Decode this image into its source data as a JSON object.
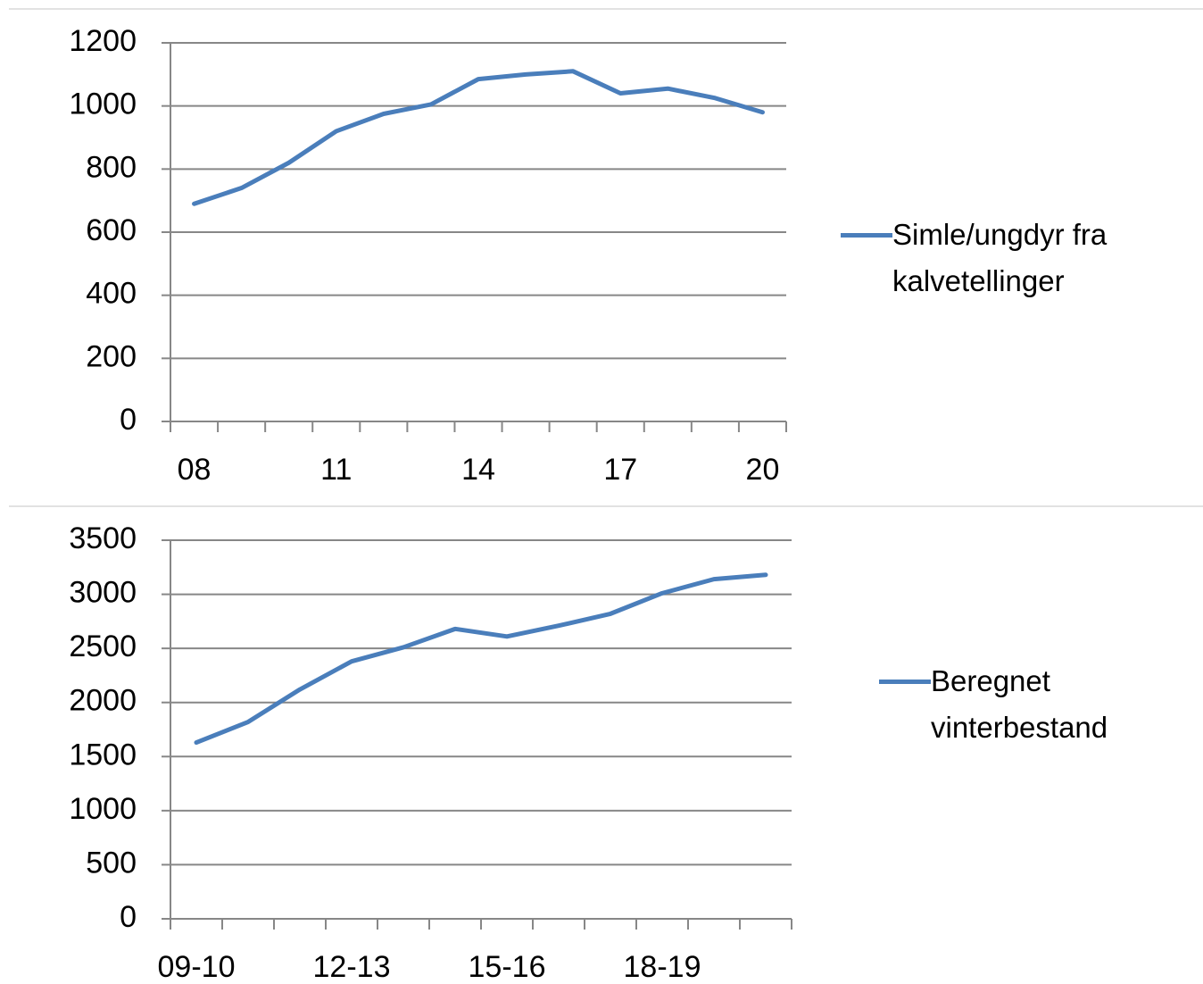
{
  "chart_data": [
    {
      "type": "line",
      "categories": [
        "08",
        null,
        null,
        "11",
        null,
        null,
        "14",
        null,
        null,
        "17",
        null,
        null,
        "20"
      ],
      "series": [
        {
          "name": "Simle/ungdyr fra kalvetellinger",
          "color": "#4a7ebb",
          "values": [
            690,
            740,
            820,
            920,
            975,
            1005,
            1085,
            1100,
            1110,
            1040,
            1055,
            1025,
            980
          ]
        }
      ],
      "ylim": [
        0,
        1200
      ],
      "yticks": [
        0,
        200,
        400,
        600,
        800,
        1000,
        1200
      ],
      "grid": true,
      "legend": "right"
    },
    {
      "type": "line",
      "categories": [
        "09-10",
        null,
        null,
        "12-13",
        null,
        null,
        "15-16",
        null,
        null,
        "18-19",
        null,
        null
      ],
      "series": [
        {
          "name": "Beregnet vinterbestand",
          "color": "#4a7ebb",
          "values": [
            1630,
            1820,
            2120,
            2380,
            2510,
            2680,
            2610,
            2710,
            2820,
            3010,
            3140,
            3180
          ]
        }
      ],
      "ylim": [
        0,
        3500
      ],
      "yticks": [
        0,
        500,
        1000,
        1500,
        2000,
        2500,
        3000,
        3500
      ],
      "grid": true,
      "legend": "right"
    }
  ]
}
